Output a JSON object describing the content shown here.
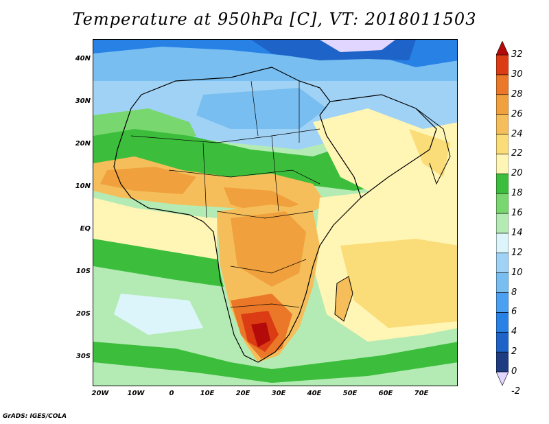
{
  "title": "Temperature at 950hPa [C], VT: 2018011503",
  "credit": "GrADS: IGES/COLA",
  "axes": {
    "lat_labels": [
      "40N",
      "30N",
      "20N",
      "10N",
      "EQ",
      "10S",
      "20S",
      "30S"
    ],
    "lon_labels": [
      "20W",
      "10W",
      "0",
      "10E",
      "20E",
      "30E",
      "40E",
      "50E",
      "60E",
      "70E"
    ]
  },
  "colorbar": {
    "labels": [
      "32",
      "30",
      "28",
      "26",
      "24",
      "22",
      "20",
      "18",
      "16",
      "14",
      "12",
      "10",
      "8",
      "6",
      "4",
      "2",
      "0",
      "-2"
    ],
    "colors": [
      "#e0d6ff",
      "#1e3c82",
      "#1e64c8",
      "#2882e6",
      "#4ba0f0",
      "#78bef0",
      "#a0d2f5",
      "#dcf5fa",
      "#b4ebb4",
      "#78d76e",
      "#3cbe3c",
      "#fff5b4",
      "#fadc78",
      "#f5be5a",
      "#f0a03c",
      "#eb7828",
      "#dc3c14",
      "#b40a0a"
    ]
  }
}
